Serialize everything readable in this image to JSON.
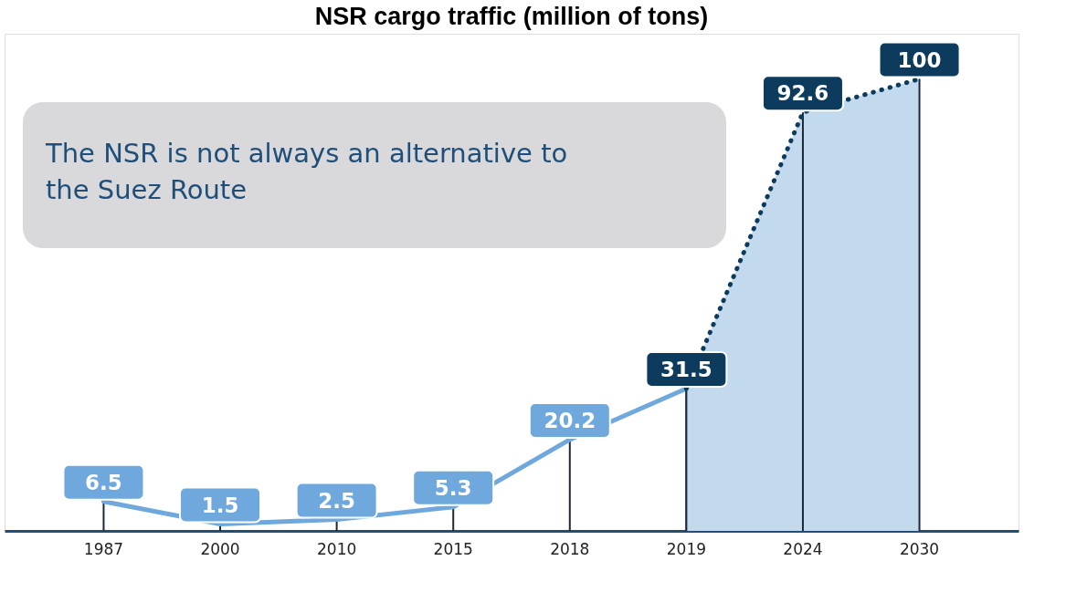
{
  "chart_data": {
    "type": "line",
    "title": "NSR cargo traffic (million of tons)",
    "categories": [
      "1987",
      "2000",
      "2010",
      "2015",
      "2018",
      "2019",
      "2024",
      "2030"
    ],
    "series": [
      {
        "type": "line",
        "color": "#6fa8dc",
        "line_style": "solid",
        "values": [
          6.5,
          1.5,
          2.5,
          5.3,
          20.2,
          31.5,
          null,
          null
        ],
        "value_labels": [
          "6.5",
          "1.5",
          "2.5",
          "5.3",
          "20.2",
          null,
          null,
          null
        ]
      },
      {
        "type": "area",
        "color": "#0d3b5e",
        "line_style": "dotted",
        "values": [
          null,
          null,
          null,
          null,
          null,
          31.5,
          92.6,
          100
        ],
        "value_labels": [
          null,
          null,
          null,
          null,
          null,
          "31.5",
          "92.6",
          "100"
        ]
      }
    ],
    "annotations": [
      "The NSR is not always an alternative to the Suez Route"
    ],
    "grid": "x",
    "legend": false,
    "tick_labels": "x"
  }
}
